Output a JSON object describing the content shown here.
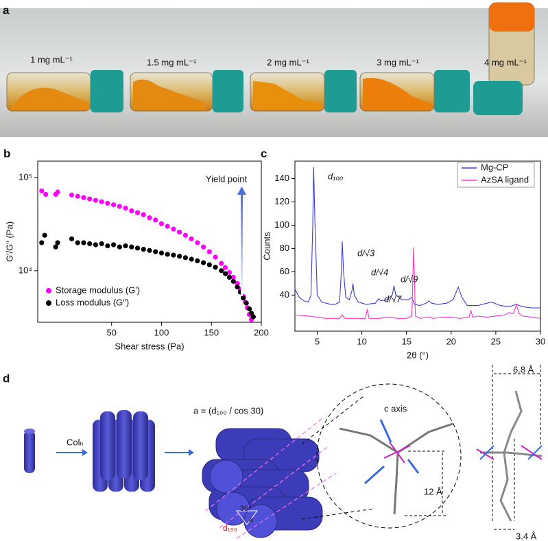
{
  "panel_a": {
    "label": "a",
    "vials": [
      "1 mg mL⁻¹",
      "1.5 mg mL⁻¹",
      "2 mg mL⁻¹",
      "3 mg mL⁻¹",
      "4 mg mL⁻¹"
    ]
  },
  "chart_data": [
    {
      "type": "scatter",
      "panel_label": "b",
      "x_label": "Shear stress (Pa)",
      "y_label": "G′/G″ (Pa)",
      "log_y": true,
      "xlim": [
        -24,
        200
      ],
      "ylim": [
        2800,
        150000
      ],
      "xticks": [
        50,
        100,
        150,
        200
      ],
      "yticks": [
        {
          "value": 10000,
          "label": "10⁴"
        },
        {
          "value": 100000,
          "label": "10⁵"
        }
      ],
      "annotation": "Yield point",
      "legend": "lower left",
      "series": [
        {
          "name": "Storage modulus (G′)",
          "color": "#ff00ff",
          "x": [
            -20,
            -16,
            -6,
            -4,
            10,
            16,
            22,
            28,
            34,
            40,
            46,
            52,
            58,
            64,
            70,
            76,
            82,
            88,
            94,
            100,
            106,
            112,
            118,
            124,
            130,
            136,
            142,
            148,
            154,
            160,
            164,
            168,
            172,
            176,
            179,
            182,
            184,
            186,
            188,
            190
          ],
          "values": [
            72000,
            66000,
            66000,
            70000,
            65000,
            63000,
            61000,
            59000,
            57000,
            55000,
            53000,
            51000,
            49000,
            47000,
            44000,
            42000,
            40000,
            37000,
            35000,
            32000,
            30000,
            28000,
            26000,
            24000,
            22000,
            20000,
            18000,
            16000,
            14000,
            12000,
            10800,
            9600,
            8500,
            7300,
            6300,
            5300,
            4600,
            4000,
            3400,
            3000
          ]
        },
        {
          "name": "Loss modulus (G″)",
          "color": "#000000",
          "x": [
            -20,
            -17,
            -6,
            -4,
            10,
            16,
            22,
            28,
            34,
            40,
            46,
            52,
            58,
            64,
            70,
            76,
            82,
            88,
            94,
            100,
            106,
            112,
            118,
            124,
            130,
            136,
            142,
            148,
            154,
            160,
            164,
            168,
            172,
            176,
            179,
            182,
            185,
            188,
            190,
            192
          ],
          "values": [
            20000,
            24000,
            18000,
            20000,
            22000,
            20000,
            20000,
            19500,
            19000,
            19500,
            18500,
            19000,
            18000,
            18500,
            18000,
            17500,
            17000,
            16500,
            16000,
            15500,
            15000,
            14700,
            14300,
            13800,
            13300,
            12800,
            12200,
            11600,
            10900,
            10000,
            9300,
            8500,
            7700,
            6700,
            5900,
            5100,
            4500,
            3900,
            3500,
            3200
          ]
        }
      ]
    },
    {
      "type": "line",
      "panel_label": "c",
      "x_label": "2θ (°)",
      "y_label": "Counts",
      "xlim": [
        2.5,
        30
      ],
      "ylim": [
        9,
        155
      ],
      "xticks": [
        5,
        10,
        15,
        20,
        25,
        30
      ],
      "yticks": [
        40,
        60,
        80,
        100,
        120,
        140
      ],
      "legend": "upper right",
      "annotations": [
        "d₁₀₀",
        "d/√3",
        "d/√4",
        "d/√7",
        "d/√9"
      ],
      "series": [
        {
          "name": "Mg-CP",
          "color": "#3c3cd0",
          "x": [
            2.5,
            3,
            3.5,
            4,
            4.3,
            4.5,
            4.6,
            4.75,
            5,
            5.5,
            6,
            6.5,
            7,
            7.5,
            7.7,
            7.8,
            7.95,
            8.2,
            8.6,
            8.9,
            9.0,
            9.15,
            9.6,
            10.5,
            11.5,
            11.9,
            12.1,
            12.8,
            13.4,
            13.6,
            13.8,
            14.5,
            15.2,
            15.6,
            15.9,
            16.5,
            17.2,
            17.5,
            17.8,
            18.5,
            19.5,
            20.2,
            20.8,
            21.2,
            21.8,
            23,
            24,
            24.5,
            25.5,
            26.5,
            27.3,
            28,
            29,
            30
          ],
          "values": [
            45,
            38,
            35,
            34,
            40,
            100,
            150,
            100,
            40,
            34,
            33,
            32,
            32,
            34,
            60,
            86,
            60,
            38,
            36,
            44,
            50,
            40,
            34,
            32,
            33,
            37,
            35,
            36,
            40,
            48,
            40,
            36,
            36,
            38,
            32,
            31,
            33,
            35,
            33,
            32,
            33,
            36,
            47,
            38,
            31,
            31,
            33,
            34,
            31,
            30,
            32,
            30,
            29,
            29
          ]
        },
        {
          "name": "AzSA ligand",
          "color": "#ff33cc",
          "x": [
            2.5,
            4,
            5,
            6,
            7.5,
            7.8,
            8.1,
            9,
            10.4,
            10.6,
            10.8,
            12,
            13,
            14,
            15,
            15.6,
            15.8,
            16.0,
            16.5,
            17.5,
            18,
            19,
            20,
            21,
            22,
            22.2,
            22.4,
            23,
            24,
            25,
            26,
            26.5,
            27,
            27.3,
            27.6,
            28,
            29,
            30
          ],
          "values": [
            23,
            22,
            21,
            20,
            20,
            23,
            20,
            20,
            20,
            28,
            20,
            20,
            21,
            20,
            20,
            22,
            81,
            22,
            20,
            21,
            20,
            21,
            21,
            20,
            21,
            27,
            21,
            22,
            21,
            22,
            23,
            25,
            24,
            32,
            24,
            22,
            21,
            20
          ]
        }
      ]
    }
  ],
  "panel_d": {
    "label": "d",
    "step_label": "Colₕ",
    "formula": "a = (d₁₀₀ / cos 30)",
    "angle": "30°",
    "lattice": "a",
    "spacing": "d₁₀₀",
    "axis": "c axis",
    "height": "12 Å",
    "width_top": "6.8 Å",
    "width_bottom": "3.4 Å"
  }
}
